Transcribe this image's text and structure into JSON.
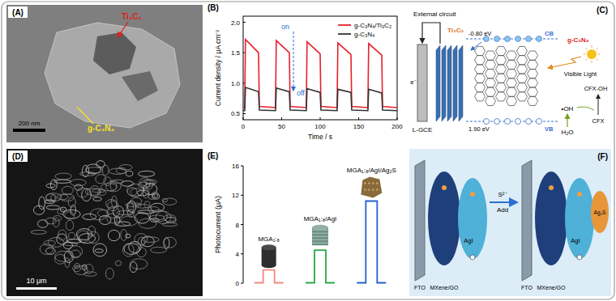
{
  "panels": {
    "A": {
      "letter": "(A)",
      "labels": {
        "cocatalyst": "Ti₃C₂",
        "sheet": "g-C₃N₄"
      },
      "scale_bar": "200 nm"
    },
    "B": {
      "letter": "(B)"
    },
    "C": {
      "letter": "(C)",
      "external_circuit": "External circuit",
      "electrode": "L-GCE",
      "cb_potential": "-0.80 eV",
      "vb_potential": "1.90 eV",
      "cb": "CB",
      "vb": "VB",
      "semiconductor": "g-C₃N₄",
      "cocatalyst": "Ti₃C₂",
      "light": "Visible Light",
      "electron": "e⁻",
      "product": "CFX-OH",
      "pollutant": "CFX",
      "radical": "•OH",
      "water": "H₂O"
    },
    "D": {
      "letter": "(D)",
      "scale_bar": "10 μm"
    },
    "E": {
      "letter": "(E)"
    },
    "F": {
      "letter": "(F)",
      "substrate": "FTO",
      "composite": "MXene/GO",
      "semiconductor": "AgI",
      "reagent": "S²⁻",
      "action": "Add",
      "product": "Ag₂S"
    }
  },
  "chart_data": [
    {
      "type": "line",
      "xlabel": "Time / s",
      "ylabel": "Current density / μA cm⁻²",
      "x": [
        0,
        2,
        3,
        20,
        21,
        42,
        43,
        60,
        61,
        82,
        83,
        100,
        101,
        122,
        123,
        140,
        141,
        162,
        163,
        180,
        181,
        200
      ],
      "series": [
        {
          "name": "g-C₃N₄/Ti₃C₂",
          "color": "#e8202a",
          "values": [
            0.6,
            0.6,
            1.72,
            1.5,
            0.62,
            0.6,
            1.7,
            1.5,
            0.62,
            0.6,
            1.68,
            1.48,
            0.62,
            0.6,
            1.66,
            1.47,
            0.62,
            0.6,
            1.65,
            1.46,
            0.62,
            0.6
          ]
        },
        {
          "name": "g-C₃N₄",
          "color": "#333333",
          "values": [
            0.55,
            0.55,
            0.93,
            0.86,
            0.56,
            0.55,
            0.92,
            0.86,
            0.56,
            0.55,
            0.91,
            0.85,
            0.56,
            0.55,
            0.9,
            0.85,
            0.56,
            0.55,
            0.9,
            0.84,
            0.56,
            0.55
          ]
        }
      ],
      "xlim": [
        0,
        200
      ],
      "ylim": [
        0.4,
        2.1
      ],
      "xticks": [
        0,
        50,
        100,
        150,
        200
      ],
      "yticks": [
        0.5,
        {
          "value": 1,
          "label": "1.0"
        },
        1.5,
        {
          "value": 2,
          "label": "2.0"
        }
      ],
      "annotations": [
        "on",
        "off"
      ],
      "legend": "upper right"
    },
    {
      "type": "bar",
      "ylabel": "Photocurrent (μA)",
      "categories": [
        "MGA₁:₈",
        "MGA₁:₈/AgI",
        "MGA₁:₈/AgI/Ag₂S"
      ],
      "values": [
        1.8,
        4.5,
        11.2
      ],
      "colors": [
        "#f08a80",
        "#2aa84a",
        "#2060d0"
      ],
      "ylim": [
        0,
        16
      ],
      "yticks": [
        0,
        4,
        8,
        12,
        16
      ],
      "tick_labels": "y"
    }
  ]
}
